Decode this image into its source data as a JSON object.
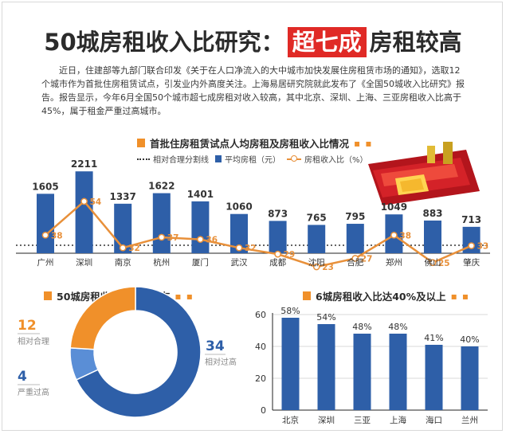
{
  "header": {
    "title_pre": "50城房租收入比研究：",
    "title_highlight": "超七成",
    "title_post": "房租较高",
    "intro": "近日，住建部等九部门联合印发《关于在人口净流入的大中城市加快发展住房租赁市场的通知》，选取12个城市作为首批住房租赁试点，引发业内外高度关注。上海易居研究院就此发布了《全国50城收入比研究》报告。报告显示，今年6月全国50个城市超七成房租对收入较高，其中北京、深圳、上海、三亚房租收入比高于45%，属于租金严重过高城市。"
  },
  "sections": {
    "top_title": "首批住房租赁试点人均房租及房租收入比情况",
    "pie_title": "50城房租收入比水平分布",
    "bar_title": "6城房租收入比达40%及以上",
    "dots": "▪ ▪"
  },
  "legend": {
    "threshold": "相对合理分割线",
    "rent": "平均房租（元）",
    "ratio": "房租收入比（%）"
  },
  "colors": {
    "bar_blue": "#2e5fa8",
    "line_orange": "#e8903a",
    "accent_red": "#e02a26",
    "section_orange": "#f0902a",
    "pie_light_blue": "#5a8ed6"
  },
  "chart_data": [
    {
      "type": "bar",
      "title": "首批住房租赁试点人均房租及房租收入比情况",
      "categories": [
        "广州",
        "深圳",
        "南京",
        "杭州",
        "厦门",
        "武汉",
        "成都",
        "沈阳",
        "合肥",
        "郑州",
        "佛山",
        "肇庆"
      ],
      "series": [
        {
          "name": "平均房租（元）",
          "kind": "bar",
          "values": [
            1605,
            2211,
            1337,
            1622,
            1401,
            1060,
            873,
            765,
            795,
            1049,
            883,
            713
          ]
        },
        {
          "name": "房租收入比（%）",
          "kind": "line",
          "values": [
            38,
            54,
            32,
            37,
            36,
            32,
            29,
            23,
            27,
            38,
            25,
            33
          ]
        }
      ],
      "threshold_label": "相对合理分割线"
    },
    {
      "type": "pie",
      "title": "50城房租收入比水平分布",
      "slices": [
        {
          "label": "相对过高",
          "value": 34,
          "color": "#2e5fa8"
        },
        {
          "label": "严重过高",
          "value": 4,
          "color": "#5a8ed6"
        },
        {
          "label": "相对合理",
          "value": 12,
          "color": "#f0902a"
        }
      ]
    },
    {
      "type": "bar",
      "title": "6城房租收入比达40%及以上",
      "categories": [
        "北京",
        "深圳",
        "三亚",
        "上海",
        "海口",
        "兰州"
      ],
      "values": [
        58,
        54,
        48,
        48,
        41,
        40
      ],
      "value_labels": [
        "58%",
        "54%",
        "48%",
        "48%",
        "41%",
        "40%"
      ],
      "ylim": [
        0,
        60
      ],
      "yticks": [
        "0",
        "20",
        "40",
        "60"
      ],
      "grid": true
    }
  ]
}
